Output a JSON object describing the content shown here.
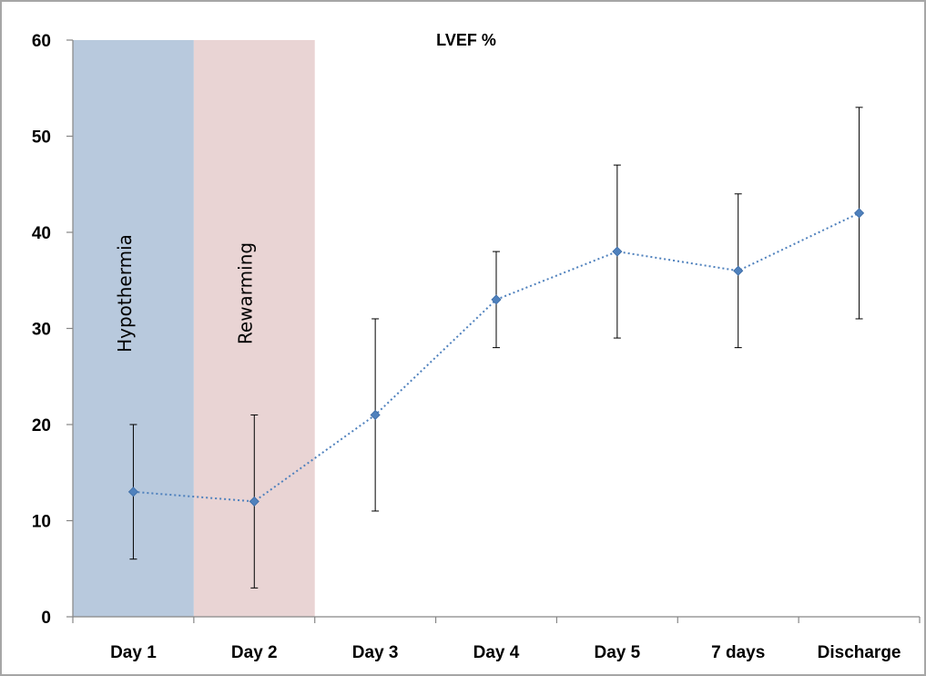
{
  "chart_data": {
    "type": "line",
    "title": "LVEF %",
    "xlabel": "",
    "ylabel": "",
    "categories": [
      "Day 1",
      "Day 2",
      "Day 3",
      "Day 4",
      "Day 5",
      "7 days",
      "Discharge"
    ],
    "series": [
      {
        "values": [
          13,
          12,
          21,
          33,
          38,
          36,
          42
        ],
        "error_low": [
          6,
          3,
          11,
          28,
          29,
          28,
          31
        ],
        "error_high": [
          20,
          21,
          31,
          38,
          47,
          44,
          53
        ],
        "color": "#4f81bd",
        "line_style": "dotted",
        "marker": "diamond"
      }
    ],
    "ylim": [
      0,
      60
    ],
    "yticks": [
      0,
      10,
      20,
      30,
      40,
      50,
      60
    ],
    "grid": false,
    "legend": "none",
    "bands": [
      {
        "label": "Hypothermia",
        "category": "Day 1",
        "color": "#b8c9dd"
      },
      {
        "label": "Rewarming",
        "category": "Day 2",
        "color": "#e9d4d4"
      }
    ]
  }
}
